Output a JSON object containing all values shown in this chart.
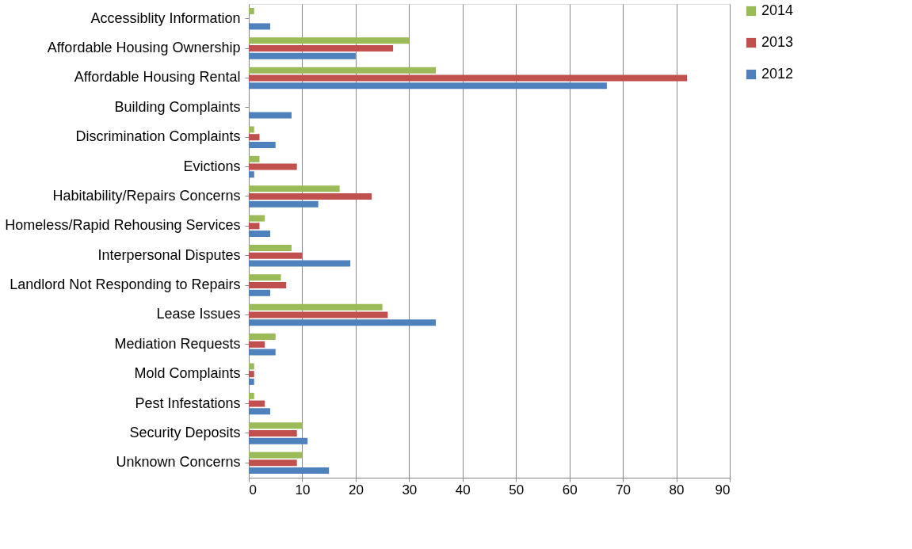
{
  "chart_data": {
    "type": "bar",
    "orientation": "horizontal",
    "categories": [
      "Accessiblity Information",
      "Affordable Housing Ownership",
      "Affordable Housing Rental",
      "Building Complaints",
      "Discrimination Complaints",
      "Evictions",
      "Habitability/Repairs Concerns",
      "Homeless/Rapid Rehousing Services",
      "Interpersonal Disputes",
      "Landlord Not Responding to Repairs",
      "Lease Issues",
      "Mediation Requests",
      "Mold Complaints",
      "Pest Infestations",
      "Security Deposits",
      "Unknown Concerns"
    ],
    "series": [
      {
        "name": "2014",
        "color": "#9bbb59",
        "values": [
          1,
          30,
          35,
          0,
          1,
          2,
          17,
          3,
          8,
          6,
          25,
          5,
          1,
          1,
          10,
          10
        ]
      },
      {
        "name": "2013",
        "color": "#c0504d",
        "values": [
          0,
          27,
          82,
          0,
          2,
          9,
          23,
          2,
          10,
          7,
          26,
          3,
          1,
          3,
          9,
          9
        ]
      },
      {
        "name": "2012",
        "color": "#4f81bd",
        "values": [
          4,
          20,
          67,
          8,
          5,
          1,
          13,
          4,
          19,
          4,
          35,
          5,
          1,
          4,
          11,
          15
        ]
      }
    ],
    "xlim": [
      0,
      90
    ],
    "xticks": [
      0,
      10,
      20,
      30,
      40,
      50,
      60,
      70,
      80,
      90
    ],
    "grid": "x",
    "legend": "right"
  }
}
